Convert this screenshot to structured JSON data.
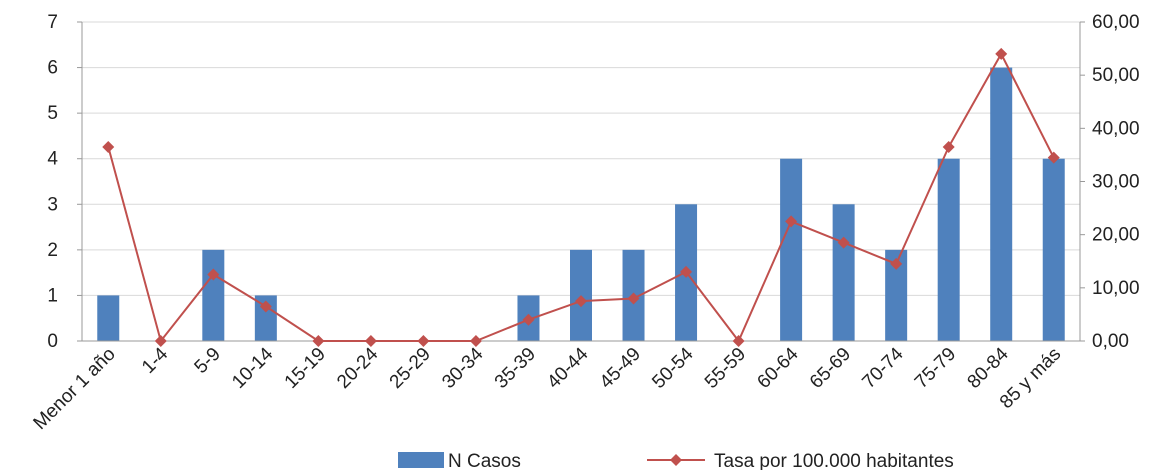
{
  "chart_data": {
    "type": "bar",
    "categories": [
      "Menor 1 año",
      "1-4",
      "5-9",
      "10-14",
      "15-19",
      "20-24",
      "25-29",
      "30-34",
      "35-39",
      "40-44",
      "45-49",
      "50-54",
      "55-59",
      "60-64",
      "65-69",
      "70-74",
      "75-79",
      "80-84",
      "85 y más"
    ],
    "series": [
      {
        "name": "N Casos",
        "type": "bar",
        "axis": "left",
        "color": "#4f81bd",
        "values": [
          1,
          0,
          2,
          1,
          0,
          0,
          0,
          0,
          1,
          2,
          2,
          3,
          0,
          4,
          3,
          2,
          4,
          6,
          4
        ]
      },
      {
        "name": "Tasa por 100.000 habitantes",
        "type": "line",
        "axis": "right",
        "color": "#c0504d",
        "values": [
          36.5,
          0,
          12.5,
          6.5,
          0,
          0,
          0,
          0,
          4,
          7.5,
          8,
          13,
          0,
          22.5,
          18.5,
          14.5,
          36.5,
          54,
          34.5
        ]
      }
    ],
    "y_left": {
      "ylim": [
        0,
        7
      ],
      "ticks": [
        "0",
        "1",
        "2",
        "3",
        "4",
        "5",
        "6",
        "7"
      ]
    },
    "y_right": {
      "ylim": [
        0,
        60
      ],
      "ticks": [
        "0,00",
        "10,00",
        "20,00",
        "30,00",
        "40,00",
        "50,00",
        "60,00"
      ]
    },
    "grid": true,
    "legend": "bottom"
  }
}
